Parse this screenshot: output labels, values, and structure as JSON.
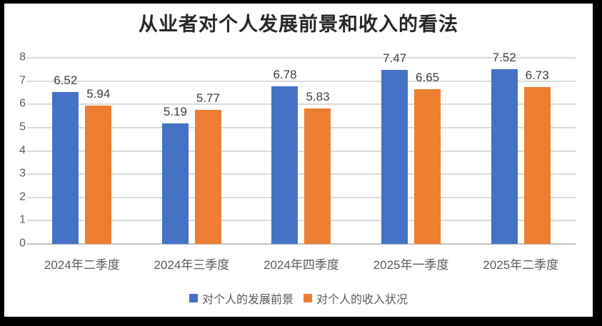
{
  "chart_data": {
    "type": "bar",
    "title": "从业者对个人发展前景和收入的看法",
    "categories": [
      "2024年二季度",
      "2024年三季度",
      "2024年四季度",
      "2025年一季度",
      "2025年二季度"
    ],
    "series": [
      {
        "name": "对个人的发展前景",
        "color": "#4472C4",
        "values": [
          6.52,
          5.19,
          6.78,
          7.47,
          7.52
        ]
      },
      {
        "name": "对个人的收入状况",
        "color": "#ED7D31",
        "values": [
          5.94,
          5.77,
          5.83,
          6.65,
          6.73
        ]
      }
    ],
    "xlabel": "",
    "ylabel": "",
    "ylim": [
      0,
      8
    ],
    "yticks": [
      0,
      1,
      2,
      3,
      4,
      5,
      6,
      7,
      8
    ],
    "grid": true,
    "grid_color": "#DADADA",
    "axis_text_color": "#595959",
    "value_label_color": "#3D3D3D",
    "legend_position": "bottom",
    "frame_border_color": "#000000",
    "background_color": "#FFFFFF"
  }
}
